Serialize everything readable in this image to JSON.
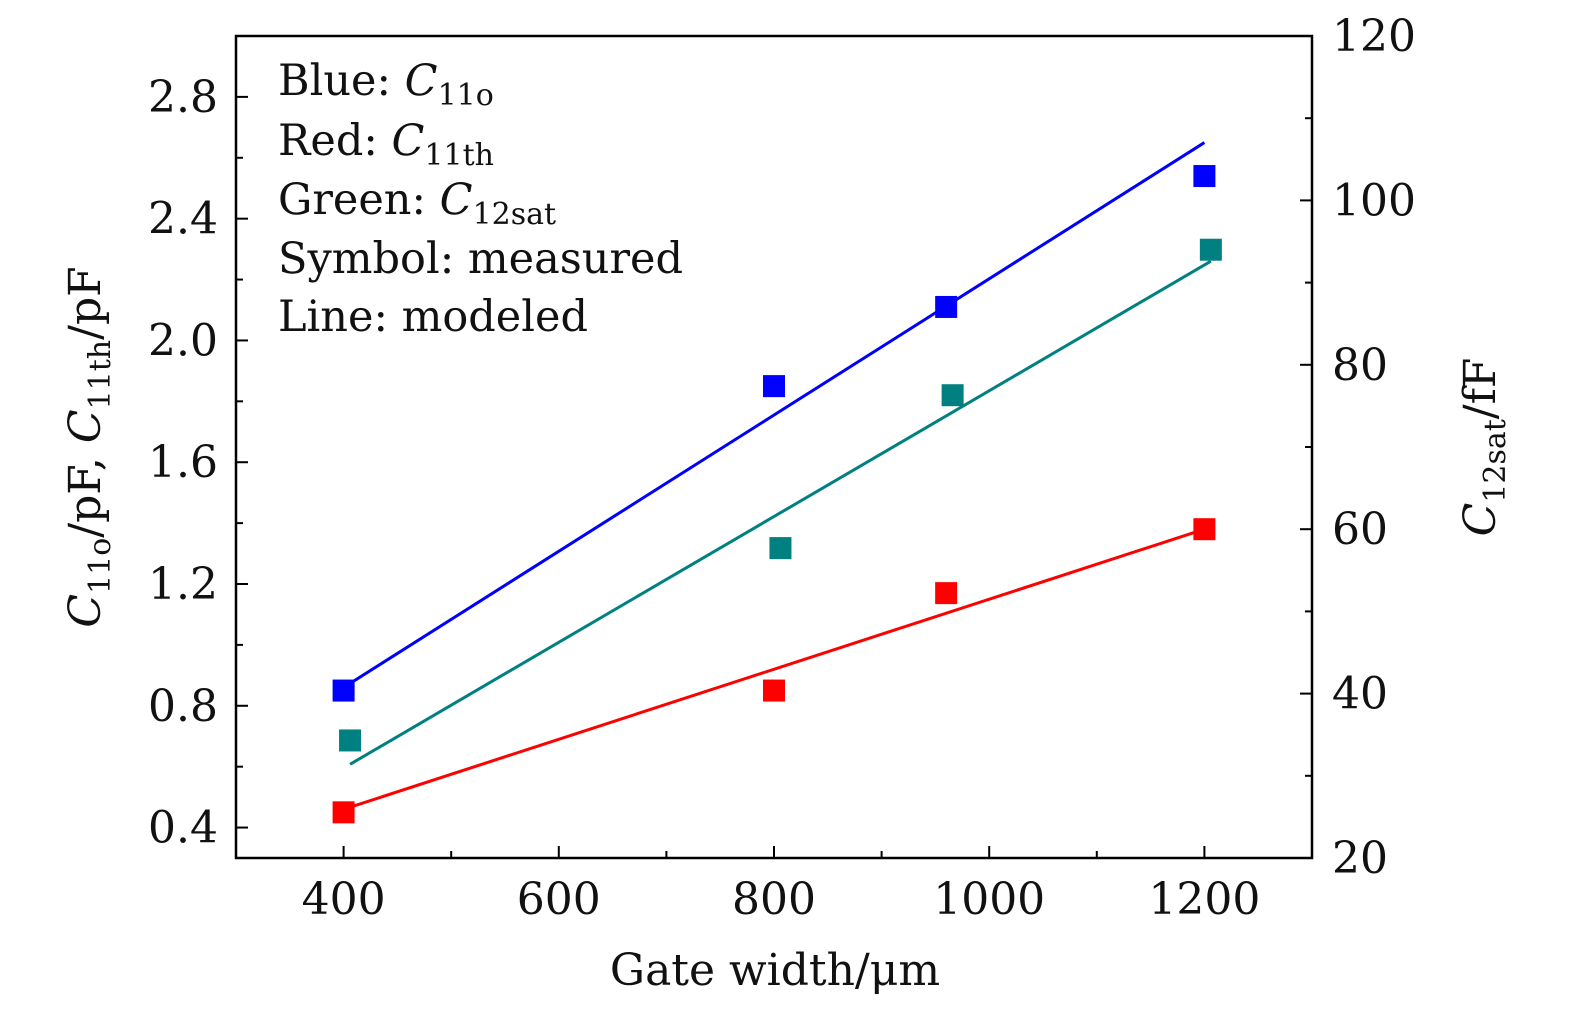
{
  "chart_data": {
    "type": "scatter",
    "xlabel": "Gate width/μm",
    "ylabel_left": {
      "main": "C",
      "sub1": "11o",
      "mid": "/pF, ",
      "main2": "C",
      "sub2": "11th",
      "tail": "/pF"
    },
    "ylabel_right": {
      "main": "C",
      "sub": "12sat",
      "tail": "/fF"
    },
    "xlim": [
      300,
      1300
    ],
    "ylim_left": [
      0.3,
      3.0
    ],
    "ylim_right": [
      20,
      120
    ],
    "x_ticks": [
      "400",
      "600",
      "800",
      "1000",
      "1200"
    ],
    "y_left_ticks": [
      "0.4",
      "0.8",
      "1.2",
      "1.6",
      "2.0",
      "2.4",
      "2.8"
    ],
    "y_right_ticks": [
      "20",
      "40",
      "60",
      "80",
      "100",
      "120"
    ],
    "legend_lines": [
      {
        "label": "Blue: ",
        "var": "C",
        "sub": "11o"
      },
      {
        "label": "Red: ",
        "var": "C",
        "sub": "11th"
      },
      {
        "label": "Green: ",
        "var": "C",
        "sub": "12sat"
      },
      {
        "label": "Symbol: measured",
        "var": "",
        "sub": ""
      },
      {
        "label": "Line: modeled",
        "var": "",
        "sub": ""
      }
    ],
    "series": [
      {
        "axis": "left",
        "color": "#0000ff",
        "measured": {
          "x": [
            400,
            800,
            960,
            1200
          ],
          "y": [
            0.85,
            1.85,
            2.11,
            2.54
          ]
        },
        "modeled": {
          "x": [
            400,
            1200
          ],
          "y": [
            0.86,
            2.65
          ]
        }
      },
      {
        "axis": "left",
        "color": "#ff0000",
        "measured": {
          "x": [
            400,
            800,
            960,
            1200
          ],
          "y": [
            0.45,
            0.85,
            1.17,
            1.38
          ]
        },
        "modeled": {
          "x": [
            400,
            1200
          ],
          "y": [
            0.46,
            1.38
          ]
        }
      },
      {
        "axis": "right",
        "color": "#008080",
        "measured": {
          "x": [
            406,
            806,
            966,
            1206
          ],
          "y": [
            34.3,
            57.7,
            76.3,
            94
          ]
        },
        "modeled": {
          "x": [
            406,
            1206
          ],
          "y": [
            31.4,
            92.6
          ]
        }
      }
    ]
  }
}
